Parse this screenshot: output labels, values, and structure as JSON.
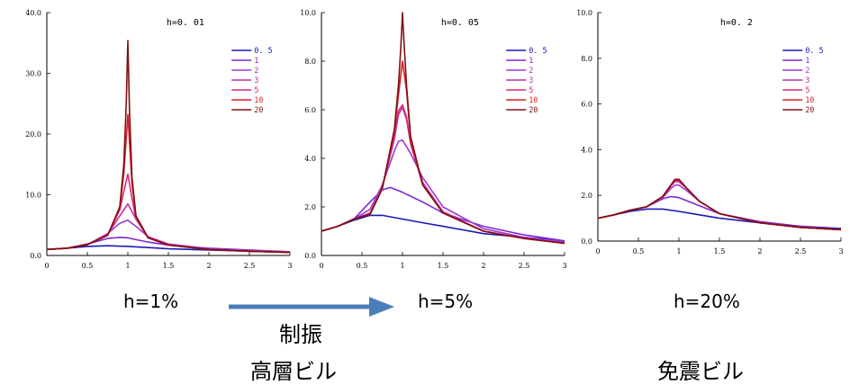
{
  "captions": {
    "h1": "h=1%",
    "h5": "h=5%",
    "h20": "h=20%",
    "arrow_label": "制振",
    "left_label": "高層ビル",
    "right_label": "免震ビル"
  },
  "arrow_color": "#4a7ebb",
  "chart_data": [
    {
      "type": "line",
      "title": "h=0. 01",
      "h": 0.01,
      "xlim": [
        0,
        3
      ],
      "ylim": [
        0,
        40
      ],
      "xticks": [
        "0",
        "0.5",
        "1",
        "1.5",
        "2",
        "2.5",
        "3"
      ],
      "yticks": [
        "0.0",
        "10.0",
        "20.0",
        "30.0",
        "40.0"
      ],
      "legend_position": "top-right",
      "series": [
        {
          "name": "0. 5",
          "color": "#1a1ab4",
          "x": [
            0,
            0.25,
            0.5,
            0.75,
            1.0,
            1.25,
            1.5,
            2.0,
            2.5,
            3.0
          ],
          "y": [
            1.0,
            1.2,
            1.5,
            1.6,
            1.5,
            1.3,
            1.1,
            0.9,
            0.7,
            0.6
          ]
        },
        {
          "name": "1",
          "color": "#7a2ad2",
          "x": [
            0,
            0.25,
            0.5,
            0.75,
            0.9,
            1.0,
            1.1,
            1.25,
            1.5,
            2.0,
            2.5,
            3.0
          ],
          "y": [
            1.0,
            1.2,
            1.9,
            2.8,
            3.0,
            2.9,
            2.6,
            2.2,
            1.7,
            1.2,
            0.9,
            0.6
          ]
        },
        {
          "name": "2",
          "color": "#a238d0",
          "x": [
            0,
            0.25,
            0.5,
            0.75,
            0.9,
            1.0,
            1.1,
            1.25,
            1.5,
            2.0,
            2.5,
            3.0
          ],
          "y": [
            1.0,
            1.2,
            1.8,
            3.6,
            5.3,
            5.8,
            4.8,
            3.1,
            1.9,
            1.1,
            0.8,
            0.6
          ]
        },
        {
          "name": "3",
          "color": "#c02ca6",
          "x": [
            0,
            0.25,
            0.5,
            0.75,
            0.9,
            1.0,
            1.1,
            1.25,
            1.5,
            2.0,
            2.5,
            3.0
          ],
          "y": [
            1.0,
            1.2,
            1.8,
            3.5,
            6.5,
            8.5,
            6.0,
            3.0,
            1.8,
            1.0,
            0.7,
            0.5
          ]
        },
        {
          "name": "5",
          "color": "#d8287a",
          "x": [
            0,
            0.25,
            0.5,
            0.75,
            0.9,
            0.95,
            1.0,
            1.05,
            1.1,
            1.25,
            1.5,
            2.0,
            2.5,
            3.0
          ],
          "y": [
            1.0,
            1.2,
            1.8,
            3.4,
            7.5,
            10.5,
            13.4,
            9.5,
            6.0,
            2.9,
            1.7,
            1.0,
            0.7,
            0.5
          ]
        },
        {
          "name": "10",
          "color": "#d81e28",
          "x": [
            0,
            0.25,
            0.5,
            0.75,
            0.9,
            0.95,
            1.0,
            1.05,
            1.1,
            1.25,
            1.5,
            2.0,
            2.5,
            3.0
          ],
          "y": [
            1.0,
            1.2,
            1.8,
            3.3,
            7.8,
            13.5,
            23.2,
            12.0,
            6.5,
            2.9,
            1.7,
            1.0,
            0.7,
            0.5
          ]
        },
        {
          "name": "20",
          "color": "#801010",
          "x": [
            0,
            0.25,
            0.5,
            0.75,
            0.9,
            0.95,
            0.98,
            1.0,
            1.02,
            1.05,
            1.1,
            1.25,
            1.5,
            2.0,
            2.5,
            3.0
          ],
          "y": [
            1.0,
            1.2,
            1.8,
            3.3,
            8.0,
            15.0,
            25.0,
            35.4,
            24.0,
            13.0,
            6.5,
            2.9,
            1.7,
            1.0,
            0.7,
            0.5
          ]
        }
      ]
    },
    {
      "type": "line",
      "title": "h=0. 05",
      "h": 0.05,
      "xlim": [
        0,
        3
      ],
      "ylim": [
        0,
        10
      ],
      "xticks": [
        "0",
        "0.5",
        "1",
        "1.5",
        "2",
        "2.5",
        "3"
      ],
      "yticks": [
        "0.0",
        "2.0",
        "4.0",
        "6.0",
        "8.0",
        "10.0"
      ],
      "legend_position": "top-right",
      "series": [
        {
          "name": "0. 5",
          "color": "#1a1ab4",
          "x": [
            0,
            0.2,
            0.4,
            0.6,
            0.75,
            1.0,
            1.25,
            1.5,
            2.0,
            2.5,
            3.0
          ],
          "y": [
            1.0,
            1.2,
            1.45,
            1.65,
            1.65,
            1.5,
            1.35,
            1.2,
            0.9,
            0.75,
            0.6
          ]
        },
        {
          "name": "1",
          "color": "#7a2ad2",
          "x": [
            0,
            0.2,
            0.4,
            0.6,
            0.75,
            0.85,
            1.0,
            1.25,
            1.5,
            2.0,
            2.5,
            3.0
          ],
          "y": [
            1.0,
            1.2,
            1.5,
            2.2,
            2.7,
            2.8,
            2.6,
            2.2,
            1.75,
            1.2,
            0.85,
            0.6
          ]
        },
        {
          "name": "2",
          "color": "#a238d0",
          "x": [
            0,
            0.2,
            0.4,
            0.6,
            0.75,
            0.9,
            0.95,
            1.0,
            1.1,
            1.25,
            1.5,
            2.0,
            2.5,
            3.0
          ],
          "y": [
            1.0,
            1.2,
            1.5,
            1.9,
            2.9,
            4.3,
            4.7,
            4.75,
            4.2,
            3.2,
            2.0,
            1.1,
            0.75,
            0.55
          ]
        },
        {
          "name": "3",
          "color": "#c02ca6",
          "x": [
            0,
            0.2,
            0.4,
            0.6,
            0.75,
            0.9,
            0.95,
            1.0,
            1.05,
            1.1,
            1.25,
            1.5,
            2.0,
            2.5,
            3.0
          ],
          "y": [
            1.0,
            1.2,
            1.5,
            1.75,
            2.8,
            4.8,
            5.8,
            6.1,
            5.6,
            4.6,
            3.0,
            1.8,
            1.0,
            0.7,
            0.5
          ]
        },
        {
          "name": "5",
          "color": "#d8287a",
          "x": [
            0,
            0.2,
            0.4,
            0.6,
            0.75,
            0.9,
            0.95,
            1.0,
            1.05,
            1.1,
            1.25,
            1.5,
            2.0,
            2.5,
            3.0
          ],
          "y": [
            1.0,
            1.2,
            1.5,
            1.7,
            2.75,
            5.0,
            5.95,
            6.2,
            5.7,
            4.6,
            2.9,
            1.75,
            1.0,
            0.7,
            0.5
          ]
        },
        {
          "name": "10",
          "color": "#d81e28",
          "x": [
            0,
            0.2,
            0.4,
            0.6,
            0.75,
            0.9,
            0.95,
            1.0,
            1.05,
            1.1,
            1.25,
            1.5,
            2.0,
            2.5,
            3.0
          ],
          "y": [
            1.0,
            1.2,
            1.5,
            1.7,
            2.75,
            5.1,
            6.6,
            8.0,
            6.8,
            4.8,
            2.9,
            1.75,
            1.0,
            0.7,
            0.5
          ]
        },
        {
          "name": "20",
          "color": "#801010",
          "x": [
            0,
            0.2,
            0.4,
            0.6,
            0.75,
            0.9,
            0.95,
            0.98,
            1.0,
            1.02,
            1.05,
            1.1,
            1.25,
            1.5,
            2.0,
            2.5,
            3.0
          ],
          "y": [
            1.0,
            1.2,
            1.5,
            1.7,
            2.75,
            5.2,
            7.0,
            8.6,
            10.0,
            8.7,
            7.0,
            4.9,
            2.9,
            1.75,
            1.0,
            0.7,
            0.5
          ]
        }
      ]
    },
    {
      "type": "line",
      "title": "h=0. 2",
      "h": 0.2,
      "xlim": [
        0,
        3
      ],
      "ylim": [
        0,
        10
      ],
      "xticks": [
        "0",
        "0.5",
        "1",
        "1.5",
        "2",
        "2.5",
        "3"
      ],
      "yticks": [
        "0.0",
        "2.0",
        "4.0",
        "6.0",
        "8.0",
        "10.0"
      ],
      "legend_position": "top-right",
      "series": [
        {
          "name": "0. 5",
          "color": "#1a1ab4",
          "x": [
            0,
            0.2,
            0.4,
            0.6,
            0.8,
            1.0,
            1.25,
            1.5,
            2.0,
            2.5,
            3.0
          ],
          "y": [
            1.0,
            1.15,
            1.3,
            1.4,
            1.4,
            1.3,
            1.15,
            1.0,
            0.8,
            0.65,
            0.55
          ]
        },
        {
          "name": "1",
          "color": "#7a2ad2",
          "x": [
            0,
            0.2,
            0.4,
            0.6,
            0.8,
            0.9,
            1.0,
            1.25,
            1.5,
            2.0,
            2.5,
            3.0
          ],
          "y": [
            1.0,
            1.15,
            1.35,
            1.5,
            1.85,
            1.95,
            1.9,
            1.55,
            1.2,
            0.85,
            0.65,
            0.5
          ]
        },
        {
          "name": "2",
          "color": "#a238d0",
          "x": [
            0,
            0.2,
            0.4,
            0.6,
            0.8,
            0.9,
            0.95,
            1.0,
            1.1,
            1.25,
            1.5,
            2.0,
            2.5,
            3.0
          ],
          "y": [
            1.0,
            1.15,
            1.35,
            1.5,
            1.9,
            2.3,
            2.45,
            2.45,
            2.2,
            1.75,
            1.2,
            0.8,
            0.6,
            0.5
          ]
        },
        {
          "name": "3",
          "color": "#c02ca6",
          "x": [
            0,
            0.2,
            0.4,
            0.6,
            0.8,
            0.9,
            0.95,
            1.0,
            1.1,
            1.25,
            1.5,
            2.0,
            2.5,
            3.0
          ],
          "y": [
            1.0,
            1.15,
            1.35,
            1.5,
            1.95,
            2.4,
            2.6,
            2.6,
            2.3,
            1.75,
            1.2,
            0.8,
            0.6,
            0.5
          ]
        },
        {
          "name": "5",
          "color": "#d8287a",
          "x": [
            0,
            0.2,
            0.4,
            0.6,
            0.8,
            0.9,
            0.95,
            1.0,
            1.1,
            1.25,
            1.5,
            2.0,
            2.5,
            3.0
          ],
          "y": [
            1.0,
            1.15,
            1.35,
            1.5,
            1.95,
            2.45,
            2.65,
            2.65,
            2.3,
            1.75,
            1.2,
            0.8,
            0.6,
            0.5
          ]
        },
        {
          "name": "10",
          "color": "#d81e28",
          "x": [
            0,
            0.2,
            0.4,
            0.6,
            0.8,
            0.9,
            0.95,
            1.0,
            1.1,
            1.25,
            1.5,
            2.0,
            2.5,
            3.0
          ],
          "y": [
            1.0,
            1.15,
            1.35,
            1.5,
            1.95,
            2.45,
            2.7,
            2.7,
            2.3,
            1.75,
            1.2,
            0.8,
            0.6,
            0.5
          ]
        },
        {
          "name": "20",
          "color": "#801010",
          "x": [
            0,
            0.2,
            0.4,
            0.6,
            0.8,
            0.9,
            0.95,
            1.0,
            1.1,
            1.25,
            1.5,
            2.0,
            2.5,
            3.0
          ],
          "y": [
            1.0,
            1.15,
            1.35,
            1.5,
            1.95,
            2.45,
            2.7,
            2.7,
            2.3,
            1.75,
            1.2,
            0.8,
            0.6,
            0.5
          ]
        }
      ]
    }
  ]
}
